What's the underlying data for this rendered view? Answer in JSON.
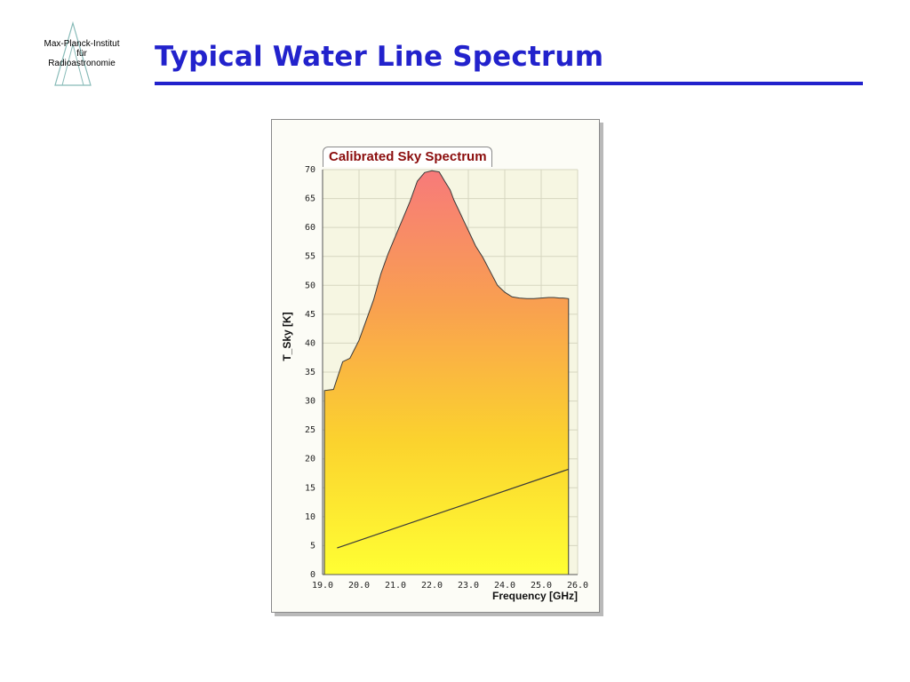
{
  "logo": {
    "lines": [
      "Max-Planck-Institut",
      "für",
      "Radioastronomie"
    ]
  },
  "slide": {
    "title": "Typical Water Line Spectrum",
    "accent_color": "#2222cc"
  },
  "chart_data": {
    "type": "area",
    "title": "Calibrated Sky Spectrum",
    "xlabel": "Frequency [GHz]",
    "ylabel": "T_Sky [K]",
    "xlim": [
      19.0,
      26.0
    ],
    "ylim": [
      0,
      70
    ],
    "x_ticks": [
      "19.0",
      "20.0",
      "21.0",
      "22.0",
      "23.0",
      "24.0",
      "25.0",
      "26.0"
    ],
    "y_ticks": [
      "0",
      "5",
      "10",
      "15",
      "20",
      "25",
      "30",
      "35",
      "40",
      "45",
      "50",
      "55",
      "60",
      "65",
      "70"
    ],
    "grid": true,
    "fill_gradient": [
      "#f77a7a",
      "#f9a050",
      "#fbd22e",
      "#ffff33"
    ],
    "series": [
      {
        "x": [
          19.05,
          19.3,
          19.55,
          19.75,
          20.0,
          20.2,
          20.4,
          20.6,
          20.8,
          21.0,
          21.2,
          21.4,
          21.6,
          21.8,
          22.0,
          22.2,
          22.35,
          22.5,
          22.6,
          22.75,
          22.9,
          23.05,
          23.2,
          23.4,
          23.6,
          23.8,
          24.0,
          24.2,
          24.4,
          24.6,
          24.8,
          25.0,
          25.2,
          25.35,
          25.5,
          25.6,
          25.75
        ],
        "y": [
          31.8,
          32.0,
          36.8,
          37.4,
          40.5,
          44.0,
          47.5,
          52.0,
          55.5,
          58.5,
          61.5,
          64.5,
          68.0,
          69.5,
          69.8,
          69.6,
          68.0,
          66.5,
          64.8,
          62.8,
          60.8,
          58.8,
          56.8,
          54.8,
          52.4,
          50.0,
          48.8,
          48.0,
          47.8,
          47.7,
          47.7,
          47.8,
          47.9,
          47.9,
          47.8,
          47.8,
          47.7
        ]
      },
      {
        "x": [
          19.4,
          25.75
        ],
        "y": [
          4.6,
          18.2
        ]
      }
    ]
  }
}
